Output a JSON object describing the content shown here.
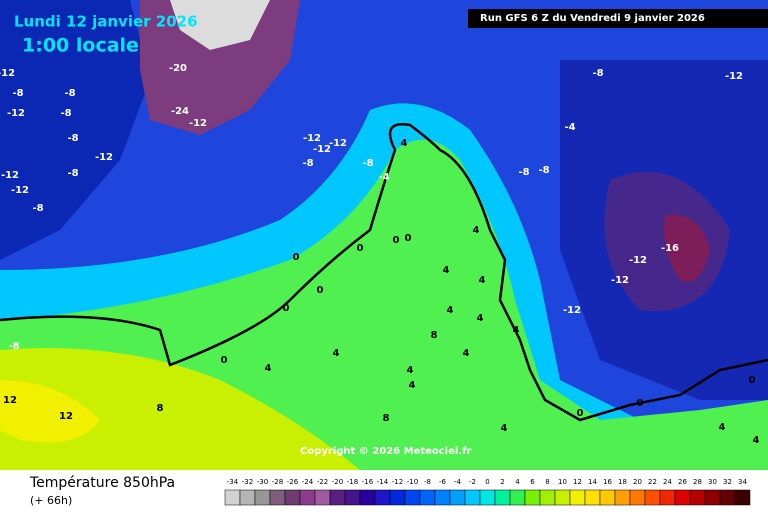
{
  "header": {
    "date": "Lundi 12 janvier 2026",
    "time": "1:00 locale",
    "run": "Run GFS 6 Z du Vendredi 9 janvier 2026"
  },
  "copyright": "Copyright © 2026 Meteociel.fr",
  "footer": {
    "title": "Température 850hPa",
    "lead": "(+ 66h)"
  },
  "legend": {
    "values": [
      -34,
      -32,
      -30,
      -28,
      -26,
      -24,
      -22,
      -20,
      -18,
      -16,
      -14,
      -12,
      -10,
      -8,
      -6,
      -4,
      -2,
      0,
      2,
      4,
      6,
      8,
      10,
      12,
      14,
      16,
      18,
      20,
      22,
      24,
      26,
      28,
      30,
      32,
      34
    ],
    "colors": [
      "#d2d2d2",
      "#b4b4b4",
      "#969696",
      "#7d5f7d",
      "#6e3c6e",
      "#8c3c8c",
      "#a05aa0",
      "#5a1e82",
      "#46148c",
      "#2800a0",
      "#1e14c8",
      "#0028dc",
      "#0046f0",
      "#0064ff",
      "#0082ff",
      "#00a0ff",
      "#00c8ff",
      "#00e6e6",
      "#00f0a0",
      "#32f050",
      "#78f000",
      "#a0f000",
      "#c8f000",
      "#f0f000",
      "#ffe000",
      "#ffc800",
      "#ffa000",
      "#ff7800",
      "#ff5000",
      "#f02800",
      "#dc0000",
      "#b40000",
      "#8c0000",
      "#640000",
      "#3c0000"
    ]
  },
  "contour_labels": [
    -12,
    -8,
    -12,
    -8,
    -8,
    -12,
    -8,
    -8,
    -12,
    -12,
    -8,
    -20,
    -24,
    -12,
    -12,
    -12,
    -12,
    -8,
    -8,
    -4,
    4,
    -8,
    -12,
    -4,
    -8,
    -8,
    -16,
    -12,
    -12,
    -12,
    0,
    0,
    0,
    0,
    0,
    0,
    4,
    4,
    4,
    4,
    4,
    4,
    4,
    8,
    4,
    4,
    4,
    8,
    12,
    8,
    -8,
    0,
    4,
    0,
    0,
    0,
    4,
    4,
    4,
    12
  ]
}
